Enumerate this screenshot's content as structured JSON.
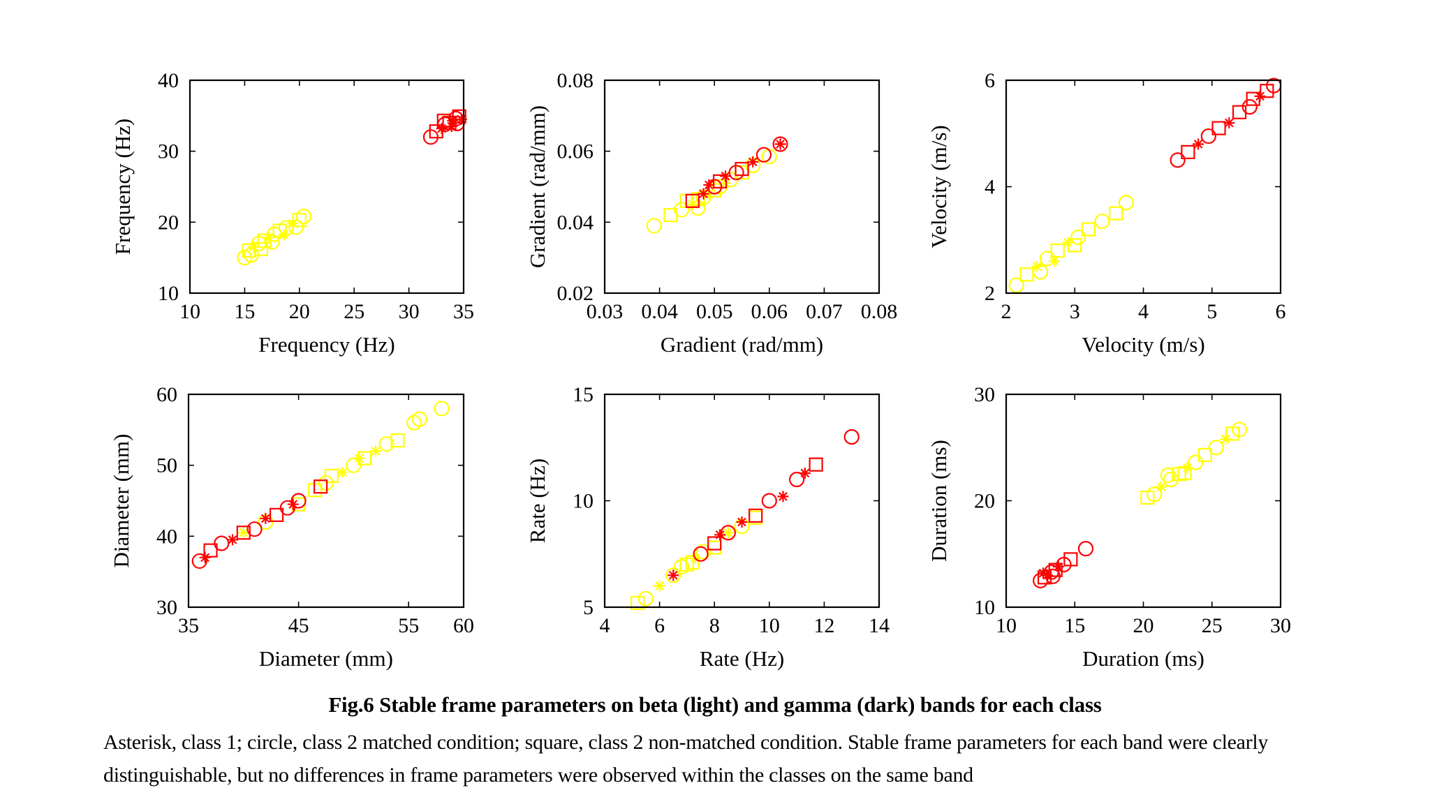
{
  "caption": {
    "title": "Fig.6  Stable frame parameters on beta (light) and gamma (dark) bands for each class",
    "body": "Asterisk, class 1; circle, class 2 matched condition; square, class 2 non-matched condition. Stable frame parameters for each band were clearly distinguishable, but no differences in frame parameters were observed within the classes on the same band"
  },
  "colors": {
    "beta": "#ffff00",
    "gamma": "#ff0000",
    "axes": "#000000"
  },
  "legend_semantics": {
    "beta_label": "beta (light)",
    "gamma_label": "gamma (dark)",
    "markers": {
      "asterisk": "class 1",
      "circle": "class 2 matched condition",
      "square": "class 2 non-matched condition"
    }
  },
  "chart_data": [
    {
      "type": "scatter",
      "xlabel": "Frequency (Hz)",
      "ylabel": "Frequency (Hz)",
      "xlim": [
        10,
        35
      ],
      "ylim": [
        10,
        40
      ],
      "xticks": [
        10,
        15,
        20,
        25,
        30,
        35
      ],
      "yticks": [
        10,
        20,
        30,
        40
      ],
      "series": [
        {
          "band": "beta",
          "color": "#ffff00",
          "points": [
            [
              15,
              15,
              "circle"
            ],
            [
              15.4,
              16,
              "square"
            ],
            [
              15.8,
              16.5,
              "asterisk"
            ],
            [
              16.3,
              17,
              "circle"
            ],
            [
              16.8,
              17.4,
              "square"
            ],
            [
              17.2,
              17.8,
              "asterisk"
            ],
            [
              17.7,
              18.3,
              "circle"
            ],
            [
              18.2,
              18.8,
              "square"
            ],
            [
              18.8,
              19.2,
              "circle"
            ],
            [
              19.4,
              19.8,
              "asterisk"
            ],
            [
              20,
              20.3,
              "square"
            ],
            [
              20.4,
              20.8,
              "circle"
            ],
            [
              15.6,
              15.4,
              "circle"
            ],
            [
              16.5,
              16.2,
              "square"
            ],
            [
              17.5,
              17.2,
              "circle"
            ],
            [
              18.6,
              18.2,
              "asterisk"
            ],
            [
              19.7,
              19.3,
              "circle"
            ]
          ]
        },
        {
          "band": "gamma",
          "color": "#ff0000",
          "points": [
            [
              32,
              32,
              "circle"
            ],
            [
              32.5,
              32.8,
              "square"
            ],
            [
              33,
              33.2,
              "asterisk"
            ],
            [
              33.3,
              33.8,
              "circle"
            ],
            [
              33.7,
              34,
              "square"
            ],
            [
              34,
              34.3,
              "asterisk"
            ],
            [
              34.3,
              34.6,
              "circle"
            ],
            [
              34.6,
              34.9,
              "square"
            ],
            [
              33.9,
              33.5,
              "asterisk"
            ],
            [
              34.4,
              33.9,
              "circle"
            ],
            [
              33.2,
              34.3,
              "square"
            ],
            [
              34.8,
              34.5,
              "asterisk"
            ]
          ]
        }
      ]
    },
    {
      "type": "scatter",
      "xlabel": "Gradient (rad/mm)",
      "ylabel": "Gradient (rad/mm)",
      "xlim": [
        0.03,
        0.08
      ],
      "ylim": [
        0.02,
        0.08
      ],
      "xticks": [
        0.03,
        0.04,
        0.05,
        0.06,
        0.07,
        0.08
      ],
      "yticks": [
        0.02,
        0.04,
        0.06,
        0.08
      ],
      "series": [
        {
          "band": "beta",
          "color": "#ffff00",
          "points": [
            [
              0.039,
              0.039,
              "circle"
            ],
            [
              0.042,
              0.042,
              "square"
            ],
            [
              0.044,
              0.0435,
              "circle"
            ],
            [
              0.046,
              0.045,
              "asterisk"
            ],
            [
              0.047,
              0.0465,
              "square"
            ],
            [
              0.048,
              0.047,
              "circle"
            ],
            [
              0.049,
              0.048,
              "asterisk"
            ],
            [
              0.05,
              0.049,
              "square"
            ],
            [
              0.051,
              0.05,
              "circle"
            ],
            [
              0.052,
              0.051,
              "asterisk"
            ],
            [
              0.053,
              0.052,
              "circle"
            ],
            [
              0.055,
              0.054,
              "square"
            ],
            [
              0.057,
              0.056,
              "circle"
            ],
            [
              0.06,
              0.0585,
              "circle"
            ],
            [
              0.045,
              0.046,
              "square"
            ],
            [
              0.047,
              0.044,
              "circle"
            ]
          ]
        },
        {
          "band": "gamma",
          "color": "#ff0000",
          "points": [
            [
              0.046,
              0.046,
              "square"
            ],
            [
              0.048,
              0.048,
              "asterisk"
            ],
            [
              0.05,
              0.05,
              "circle"
            ],
            [
              0.051,
              0.0515,
              "square"
            ],
            [
              0.052,
              0.053,
              "asterisk"
            ],
            [
              0.054,
              0.054,
              "circle"
            ],
            [
              0.055,
              0.055,
              "square"
            ],
            [
              0.057,
              0.057,
              "asterisk"
            ],
            [
              0.059,
              0.059,
              "circle"
            ],
            [
              0.062,
              0.062,
              "circle"
            ],
            [
              0.062,
              0.062,
              "asterisk"
            ],
            [
              0.049,
              0.0505,
              "asterisk"
            ]
          ]
        }
      ]
    },
    {
      "type": "scatter",
      "xlabel": "Velocity (m/s)",
      "ylabel": "Velocity (m/s)",
      "xlim": [
        2,
        6
      ],
      "ylim": [
        2,
        6
      ],
      "xticks": [
        2,
        3,
        4,
        5,
        6
      ],
      "yticks": [
        2,
        4,
        6
      ],
      "series": [
        {
          "band": "beta",
          "color": "#ffff00",
          "points": [
            [
              2.15,
              2.15,
              "circle"
            ],
            [
              2.3,
              2.35,
              "square"
            ],
            [
              2.45,
              2.5,
              "asterisk"
            ],
            [
              2.6,
              2.65,
              "circle"
            ],
            [
              2.75,
              2.8,
              "square"
            ],
            [
              2.9,
              2.95,
              "asterisk"
            ],
            [
              3.05,
              3.05,
              "circle"
            ],
            [
              3.2,
              3.2,
              "square"
            ],
            [
              3.4,
              3.35,
              "circle"
            ],
            [
              3.6,
              3.5,
              "square"
            ],
            [
              3.75,
              3.7,
              "circle"
            ],
            [
              2.5,
              2.4,
              "circle"
            ],
            [
              2.7,
              2.6,
              "asterisk"
            ],
            [
              3.0,
              2.9,
              "square"
            ]
          ]
        },
        {
          "band": "gamma",
          "color": "#ff0000",
          "points": [
            [
              4.5,
              4.5,
              "circle"
            ],
            [
              4.65,
              4.65,
              "square"
            ],
            [
              4.8,
              4.8,
              "asterisk"
            ],
            [
              4.95,
              4.95,
              "circle"
            ],
            [
              5.1,
              5.1,
              "square"
            ],
            [
              5.25,
              5.2,
              "asterisk"
            ],
            [
              5.4,
              5.4,
              "square"
            ],
            [
              5.55,
              5.5,
              "circle"
            ],
            [
              5.7,
              5.7,
              "asterisk"
            ],
            [
              5.8,
              5.8,
              "square"
            ],
            [
              5.9,
              5.9,
              "circle"
            ],
            [
              5.6,
              5.65,
              "square"
            ]
          ]
        }
      ]
    },
    {
      "type": "scatter",
      "xlabel": "Diameter (mm)",
      "ylabel": "Diameter (mm)",
      "xlim": [
        35,
        60
      ],
      "ylim": [
        30,
        60
      ],
      "xticks": [
        35,
        45,
        55,
        60
      ],
      "yticks": [
        30,
        40,
        50,
        60
      ],
      "series": [
        {
          "band": "beta",
          "color": "#ffff00",
          "points": [
            [
              40,
              40.5,
              "asterisk"
            ],
            [
              42,
              42,
              "circle"
            ],
            [
              45,
              44.5,
              "square"
            ],
            [
              46.5,
              46.5,
              "square"
            ],
            [
              47.5,
              47.5,
              "circle"
            ],
            [
              49,
              49,
              "asterisk"
            ],
            [
              50,
              50,
              "circle"
            ],
            [
              51,
              51,
              "square"
            ],
            [
              52,
              52,
              "asterisk"
            ],
            [
              53,
              53,
              "circle"
            ],
            [
              54,
              53.5,
              "square"
            ],
            [
              55.5,
              56,
              "circle"
            ],
            [
              56,
              56.5,
              "circle"
            ],
            [
              58,
              58,
              "circle"
            ],
            [
              48,
              48.5,
              "square"
            ],
            [
              50.5,
              51,
              "asterisk"
            ]
          ]
        },
        {
          "band": "gamma",
          "color": "#ff0000",
          "points": [
            [
              36,
              36.5,
              "circle"
            ],
            [
              36.5,
              37,
              "asterisk"
            ],
            [
              37,
              38,
              "square"
            ],
            [
              38,
              39,
              "circle"
            ],
            [
              39,
              39.5,
              "asterisk"
            ],
            [
              40,
              40.5,
              "square"
            ],
            [
              41,
              41,
              "circle"
            ],
            [
              42,
              42.5,
              "asterisk"
            ],
            [
              43,
              43,
              "square"
            ],
            [
              44,
              44,
              "circle"
            ],
            [
              44.5,
              44.5,
              "asterisk"
            ],
            [
              45,
              45,
              "circle"
            ],
            [
              47,
              47,
              "square"
            ]
          ]
        }
      ]
    },
    {
      "type": "scatter",
      "xlabel": "Rate (Hz)",
      "ylabel": "Rate (Hz)",
      "xlim": [
        4,
        14
      ],
      "ylim": [
        5,
        15
      ],
      "xticks": [
        4,
        6,
        8,
        10,
        12,
        14
      ],
      "yticks": [
        5,
        10,
        15
      ],
      "series": [
        {
          "band": "beta",
          "color": "#ffff00",
          "points": [
            [
              5.2,
              5.2,
              "square"
            ],
            [
              5.5,
              5.4,
              "circle"
            ],
            [
              6,
              6,
              "asterisk"
            ],
            [
              6.5,
              6.5,
              "circle"
            ],
            [
              7,
              7,
              "square"
            ],
            [
              7.3,
              7.3,
              "asterisk"
            ],
            [
              7.6,
              7.6,
              "circle"
            ],
            [
              8,
              7.8,
              "square"
            ],
            [
              8.5,
              8.5,
              "asterisk"
            ],
            [
              9,
              8.8,
              "circle"
            ],
            [
              9.5,
              9.2,
              "square"
            ],
            [
              6.8,
              6.9,
              "circle"
            ],
            [
              7.2,
              7.1,
              "square"
            ]
          ]
        },
        {
          "band": "gamma",
          "color": "#ff0000",
          "points": [
            [
              6.5,
              6.5,
              "asterisk"
            ],
            [
              7.5,
              7.5,
              "circle"
            ],
            [
              8,
              8,
              "square"
            ],
            [
              8.5,
              8.5,
              "circle"
            ],
            [
              9,
              9,
              "asterisk"
            ],
            [
              9.5,
              9.3,
              "square"
            ],
            [
              10,
              10,
              "circle"
            ],
            [
              10.5,
              10.2,
              "asterisk"
            ],
            [
              11,
              11,
              "circle"
            ],
            [
              11.3,
              11.3,
              "asterisk"
            ],
            [
              11.7,
              11.7,
              "square"
            ],
            [
              13,
              13,
              "circle"
            ],
            [
              8.2,
              8.4,
              "asterisk"
            ]
          ]
        }
      ]
    },
    {
      "type": "scatter",
      "xlabel": "Duration (ms)",
      "ylabel": "Duration (ms)",
      "xlim": [
        10,
        30
      ],
      "ylim": [
        10,
        30
      ],
      "xticks": [
        10,
        15,
        20,
        25,
        30
      ],
      "yticks": [
        10,
        20,
        30
      ],
      "series": [
        {
          "band": "beta",
          "color": "#ffff00",
          "points": [
            [
              20.3,
              20.3,
              "square"
            ],
            [
              20.8,
              20.6,
              "circle"
            ],
            [
              21.3,
              21.3,
              "asterisk"
            ],
            [
              22,
              22,
              "circle"
            ],
            [
              22.6,
              22.5,
              "square"
            ],
            [
              23.2,
              23.1,
              "asterisk"
            ],
            [
              23.8,
              23.6,
              "circle"
            ],
            [
              24.5,
              24.3,
              "square"
            ],
            [
              25.3,
              25,
              "circle"
            ],
            [
              26,
              25.8,
              "asterisk"
            ],
            [
              26.5,
              26.3,
              "square"
            ],
            [
              27,
              26.7,
              "circle"
            ],
            [
              21.8,
              22.4,
              "circle"
            ],
            [
              23,
              22.6,
              "square"
            ]
          ]
        },
        {
          "band": "gamma",
          "color": "#ff0000",
          "points": [
            [
              12.5,
              12.5,
              "circle"
            ],
            [
              12.8,
              12.8,
              "square"
            ],
            [
              13,
              13,
              "asterisk"
            ],
            [
              13.3,
              13.3,
              "circle"
            ],
            [
              13.6,
              13.5,
              "square"
            ],
            [
              13.8,
              13.8,
              "asterisk"
            ],
            [
              14.2,
              14,
              "circle"
            ],
            [
              14.7,
              14.5,
              "square"
            ],
            [
              15.8,
              15.5,
              "circle"
            ],
            [
              12.7,
              13.2,
              "asterisk"
            ],
            [
              13.4,
              12.9,
              "circle"
            ]
          ]
        }
      ]
    }
  ]
}
